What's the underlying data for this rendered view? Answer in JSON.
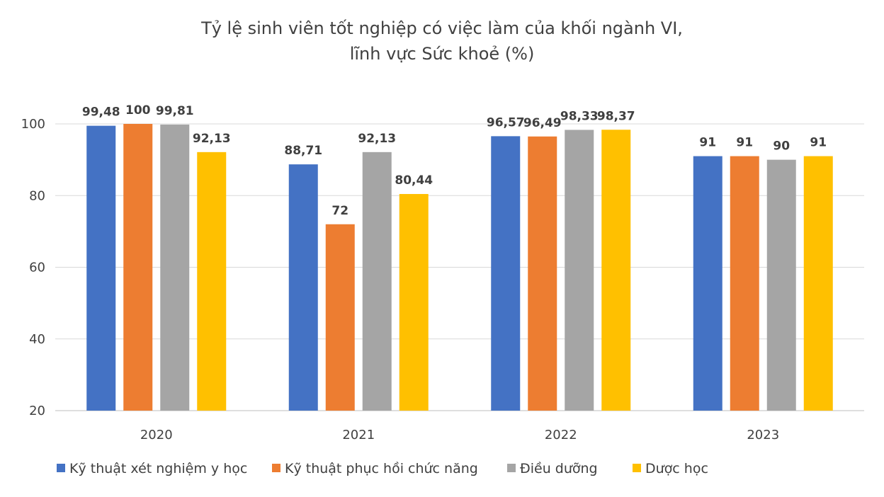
{
  "chart_data": {
    "type": "bar",
    "title": [
      "Tỷ lệ sinh viên tốt nghiệp có việc làm của khối ngành VI,",
      "lĩnh vực Sức khoẻ (%)"
    ],
    "categories": [
      "2020",
      "2021",
      "2022",
      "2023"
    ],
    "series": [
      {
        "name": "Kỹ thuật xét nghiệm y học",
        "color": "#4472C4",
        "values": [
          99.48,
          88.71,
          96.57,
          91
        ],
        "labels": [
          "99,48",
          "88,71",
          "96,57",
          "91"
        ]
      },
      {
        "name": "Kỹ thuật phục hồi chức năng",
        "color": "#ED7D31",
        "values": [
          100,
          72,
          96.49,
          91
        ],
        "labels": [
          "100",
          "72",
          "96,49",
          "91"
        ]
      },
      {
        "name": "Điều dưỡng",
        "color": "#A5A5A5",
        "values": [
          99.81,
          92.13,
          98.33,
          90
        ],
        "labels": [
          "99,81",
          "92,13",
          "98,33",
          "90"
        ]
      },
      {
        "name": "Dược học",
        "color": "#FFC000",
        "values": [
          92.13,
          80.44,
          98.37,
          91
        ],
        "labels": [
          "92,13",
          "80,44",
          "98,37",
          "91"
        ]
      }
    ],
    "ylim": [
      20,
      100
    ],
    "yticks": [
      "20",
      "40",
      "60",
      "80",
      "100"
    ],
    "grid": true,
    "legend_position": "bottom"
  }
}
